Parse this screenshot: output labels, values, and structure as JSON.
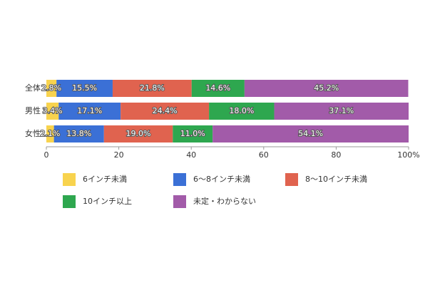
{
  "chart_data": {
    "type": "stacked-bar-horizontal",
    "categories": [
      "全体",
      "男性",
      "女性"
    ],
    "series": [
      {
        "name": "6インチ未満",
        "color": "#f8d34e",
        "values": [
          2.8,
          3.4,
          2.1
        ],
        "value_labels": [
          "2.8%",
          "3.4%",
          "2.1%"
        ]
      },
      {
        "name": "6～8インチ未満",
        "color": "#3b70d6",
        "values": [
          15.5,
          17.1,
          13.8
        ],
        "value_labels": [
          "15.5%",
          "17.1%",
          "13.8%"
        ]
      },
      {
        "name": "8～10インチ未満",
        "color": "#e0634f",
        "values": [
          21.8,
          24.4,
          19.0
        ],
        "value_labels": [
          "21.8%",
          "24.4%",
          "19.0%"
        ]
      },
      {
        "name": "10インチ以上",
        "color": "#2ea74f",
        "values": [
          14.6,
          18.0,
          11.0
        ],
        "value_labels": [
          "14.6%",
          "18.0%",
          "11.0%"
        ]
      },
      {
        "name": "未定・わからない",
        "color": "#a25ba9",
        "values": [
          45.2,
          37.1,
          54.1
        ],
        "value_labels": [
          "45.2%",
          "37.1%",
          "54.1%"
        ]
      }
    ],
    "xlim": [
      0,
      100
    ],
    "xticks": [
      0,
      20,
      40,
      60,
      80,
      {
        "value": 100,
        "label": "100%"
      }
    ]
  }
}
